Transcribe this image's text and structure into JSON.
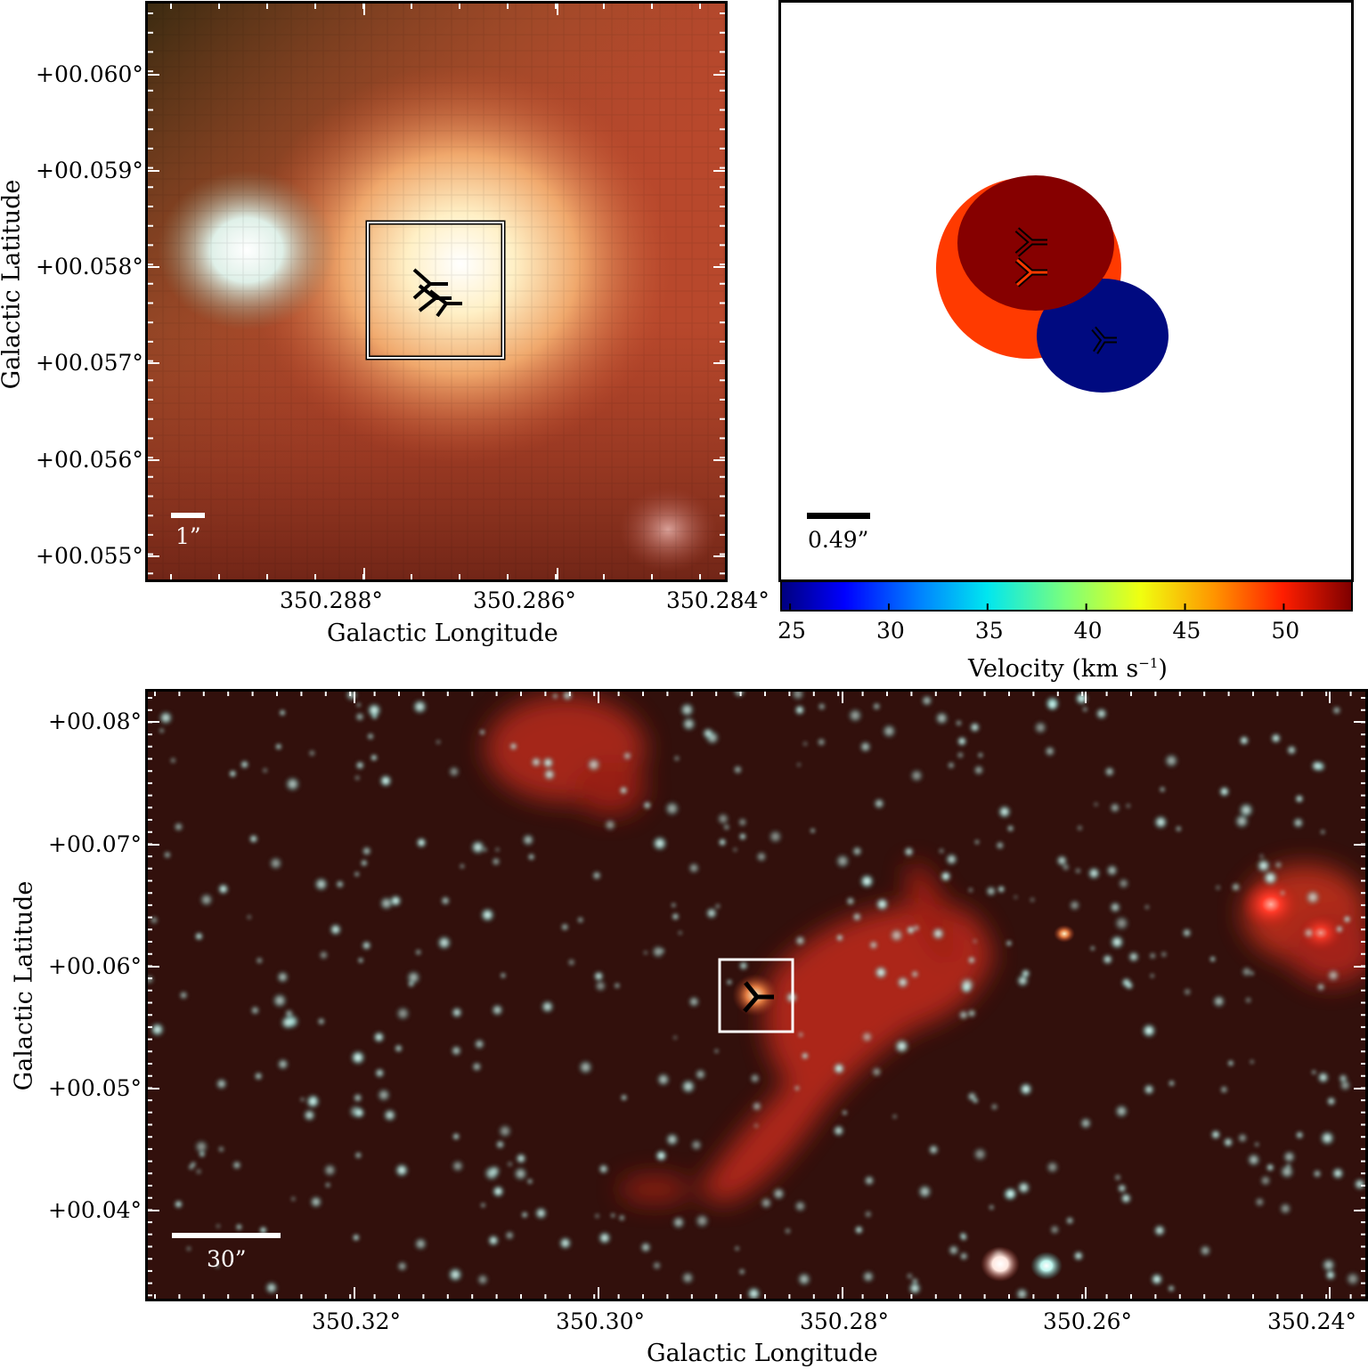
{
  "top_left": {
    "y_ticks": [
      "+00.060°",
      "+00.059°",
      "+00.058°",
      "+00.057°",
      "+00.056°",
      "+00.055°"
    ],
    "x_ticks": [
      "350.288°",
      "350.286°",
      "350.284°"
    ],
    "xlabel": "Galactic Longitude",
    "ylabel": "Galactic Latitude",
    "scalebar": "1”",
    "colors": {
      "background": "#b8482c",
      "core": "#fff6d8",
      "halo": "#f2b47a",
      "bluish_source": "#dff4ee"
    }
  },
  "top_right": {
    "scalebar": "0.49”",
    "colorbar_ticks": [
      "25",
      "30",
      "35",
      "40",
      "45",
      "50"
    ],
    "colorbar_label": "Velocity (km s",
    "colorbar_label_sup": "−1",
    "colorbar_label_end": ")",
    "colorbar_range": [
      24.5,
      53.5
    ],
    "ellipses": [
      {
        "velocity_color": "#ff3a00",
        "marker": "red"
      },
      {
        "velocity_color": "#860000",
        "marker": "darkred"
      },
      {
        "velocity_color": "#000a80",
        "marker": "blue"
      }
    ]
  },
  "bottom": {
    "y_ticks": [
      "+00.08°",
      "+00.07°",
      "+00.06°",
      "+00.05°",
      "+00.04°"
    ],
    "x_ticks": [
      "350.32°",
      "350.30°",
      "350.28°",
      "350.26°",
      "350.24°"
    ],
    "xlabel": "Galactic Longitude",
    "ylabel": "Galactic Latitude",
    "scalebar": "30”",
    "colors": {
      "background": "#2a0c08",
      "stars": "#bff6ee",
      "nebula": "#c12a1e"
    }
  }
}
